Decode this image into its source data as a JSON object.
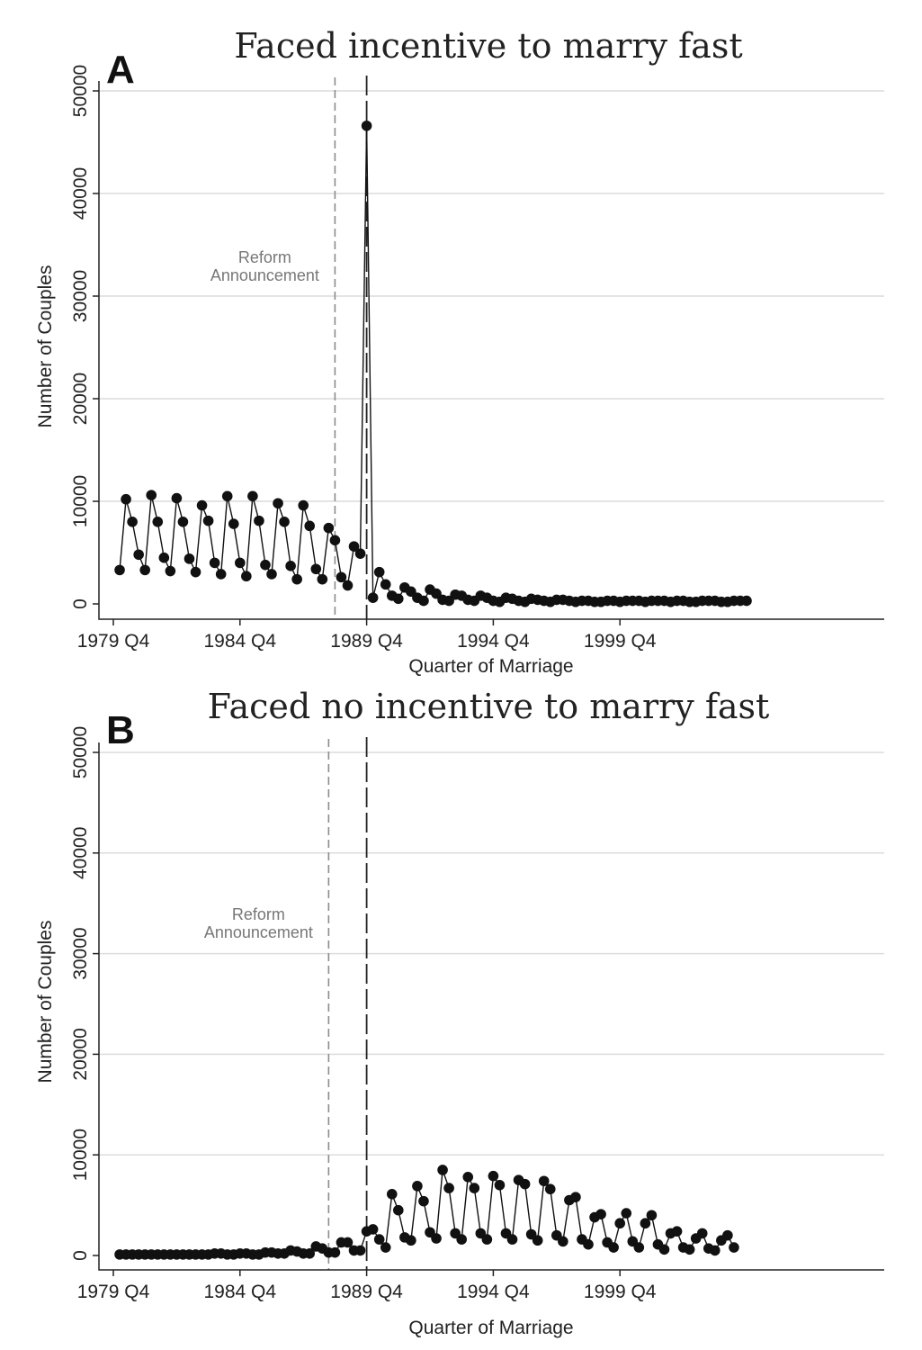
{
  "chart_data": [
    {
      "type": "line",
      "panel": "A",
      "title": "Faced incentive to marry fast",
      "xlabel": "Quarter of Marriage",
      "ylabel": "Number of Couples",
      "x_tick_labels": [
        "1979 Q4",
        "1984 Q4",
        "1989 Q4",
        "1994 Q4",
        "1999 Q4"
      ],
      "y_tick_labels": [
        "0",
        "10000",
        "20000",
        "30000",
        "40000",
        "50000"
      ],
      "ylim": [
        0,
        50000
      ],
      "grid": true,
      "x_start": "1980 Q1",
      "annotations": [
        {
          "text_lines": [
            "Reform",
            "Announcement"
          ],
          "at": "1988 Q3",
          "style": "dashed-gray"
        },
        {
          "text_lines": [],
          "at": "1989 Q4",
          "style": "longdash-black"
        }
      ],
      "values": [
        3300,
        10200,
        8000,
        4800,
        3300,
        10600,
        8000,
        4500,
        3200,
        10300,
        8000,
        4400,
        3100,
        9600,
        8100,
        4000,
        2900,
        10500,
        7800,
        4000,
        2700,
        10500,
        8100,
        3800,
        2900,
        9800,
        8000,
        3700,
        2400,
        9600,
        7600,
        3400,
        2400,
        7400,
        6200,
        2600,
        1800,
        5600,
        4900,
        46600,
        600,
        3100,
        1900,
        800,
        500,
        1600,
        1200,
        600,
        300,
        1400,
        1000,
        400,
        300,
        900,
        800,
        400,
        300,
        800,
        600,
        300,
        200,
        600,
        500,
        300,
        200,
        500,
        400,
        300,
        200,
        400,
        400,
        300,
        200,
        300,
        300,
        200,
        200,
        300,
        300,
        200,
        300,
        300,
        300,
        200,
        300,
        300,
        300,
        200,
        300,
        300,
        200,
        200,
        300,
        300,
        300,
        200,
        200,
        300,
        300,
        300
      ]
    },
    {
      "type": "line",
      "panel": "B",
      "title": "Faced no incentive to marry fast",
      "xlabel": "Quarter of Marriage",
      "ylabel": "Number of Couples",
      "x_tick_labels": [
        "1979 Q4",
        "1984 Q4",
        "1989 Q4",
        "1994 Q4",
        "1999 Q4"
      ],
      "y_tick_labels": [
        "0",
        "10000",
        "20000",
        "30000",
        "40000",
        "50000"
      ],
      "ylim": [
        0,
        50000
      ],
      "grid": true,
      "x_start": "1980 Q1",
      "annotations": [
        {
          "text_lines": [
            "Reform",
            "Announcement"
          ],
          "at": "1988 Q2",
          "style": "dashed-gray"
        },
        {
          "text_lines": [],
          "at": "1989 Q4",
          "style": "longdash-black"
        }
      ],
      "values": [
        100,
        100,
        100,
        100,
        100,
        100,
        100,
        100,
        100,
        100,
        100,
        100,
        100,
        100,
        100,
        200,
        200,
        100,
        100,
        200,
        200,
        100,
        100,
        300,
        300,
        200,
        200,
        500,
        400,
        200,
        200,
        900,
        700,
        300,
        300,
        1300,
        1300,
        500,
        500,
        2400,
        2600,
        1600,
        800,
        6100,
        4500,
        1800,
        1500,
        6900,
        5400,
        2300,
        1700,
        8500,
        6700,
        2200,
        1600,
        7800,
        6700,
        2200,
        1600,
        7900,
        7000,
        2200,
        1600,
        7500,
        7100,
        2100,
        1500,
        7400,
        6600,
        2000,
        1400,
        5500,
        5800,
        1600,
        1100,
        3800,
        4100,
        1300,
        800,
        3200,
        4200,
        1400,
        800,
        3200,
        4000,
        1100,
        600,
        2200,
        2400,
        800,
        600,
        1700,
        2200,
        700,
        500,
        1500,
        2000,
        800
      ]
    }
  ]
}
